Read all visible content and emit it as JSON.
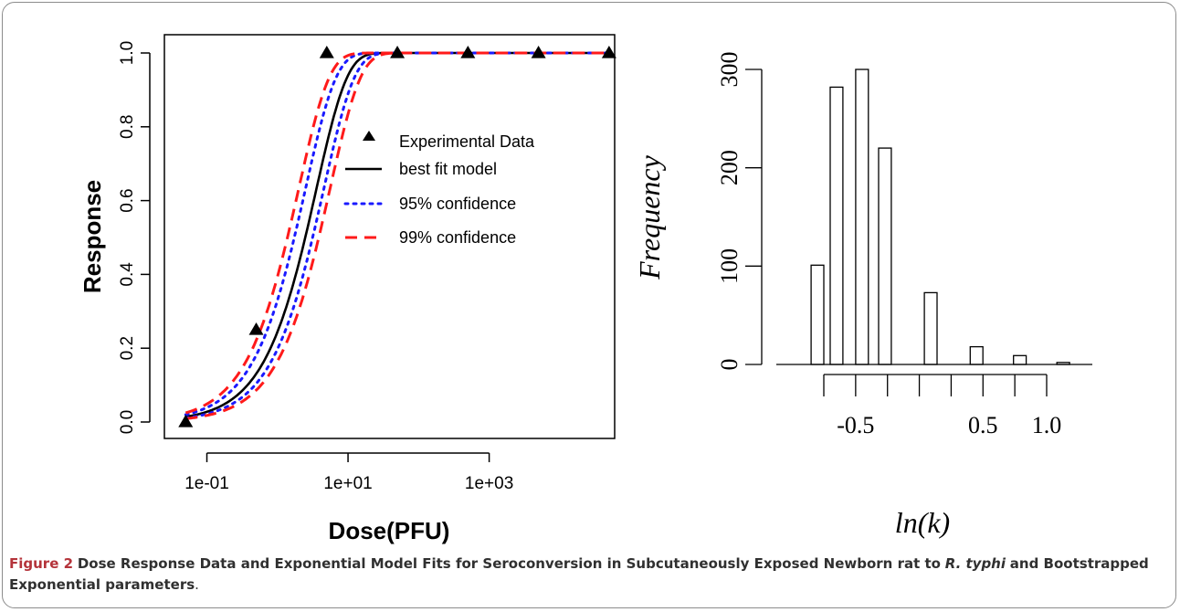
{
  "chart_data": [
    {
      "type": "line",
      "xlabel": "Dose(PFU)",
      "ylabel": "Response",
      "x_scale": "log10",
      "xlim": [
        0.025,
        60000
      ],
      "ylim": [
        0,
        1
      ],
      "x_ticks": [
        {
          "value": 0.1,
          "label": "1e-01"
        },
        {
          "value": 10,
          "label": "1e+01"
        },
        {
          "value": 1000,
          "label": "1e+03"
        }
      ],
      "y_ticks": [
        {
          "value": 0.0,
          "label": "0.0"
        },
        {
          "value": 0.2,
          "label": "0.2"
        },
        {
          "value": 0.4,
          "label": "0.4"
        },
        {
          "value": 0.6,
          "label": "0.6"
        },
        {
          "value": 0.8,
          "label": "0.8"
        },
        {
          "value": 1.0,
          "label": "1.0"
        }
      ],
      "points": {
        "name": "Experimental Data",
        "x": [
          0.05,
          0.5,
          5,
          50,
          500,
          5000,
          50000
        ],
        "y": [
          0.0,
          0.25,
          1.0,
          1.0,
          1.0,
          1.0,
          1.0
        ]
      },
      "curves": [
        {
          "name": "best fit model",
          "style": "solid",
          "color": "#000000",
          "k": [
            0.28
          ]
        },
        {
          "name": "95% confidence",
          "style": "dotted",
          "color": "#1a1aff",
          "k": [
            0.4,
            0.22
          ]
        },
        {
          "name": "99% confidence",
          "style": "dashed",
          "color": "#ff1a1a",
          "k": [
            0.5,
            0.18
          ]
        }
      ],
      "legend_position": "center-right",
      "grid": false
    },
    {
      "type": "histogram",
      "xlabel": "ln(k)",
      "ylabel": "Frequency",
      "xlim": [
        -0.95,
        1.5
      ],
      "ylim": [
        0,
        300
      ],
      "x_ticks": [
        {
          "value": -0.75,
          "label": ""
        },
        {
          "value": -0.5,
          "label": "-0.5"
        },
        {
          "value": -0.25,
          "label": ""
        },
        {
          "value": 0.0,
          "label": ""
        },
        {
          "value": 0.25,
          "label": ""
        },
        {
          "value": 0.5,
          "label": "0.5"
        },
        {
          "value": 0.75,
          "label": ""
        },
        {
          "value": 1.0,
          "label": "1.0"
        }
      ],
      "y_ticks": [
        {
          "value": 0,
          "label": "0"
        },
        {
          "value": 100,
          "label": "100"
        },
        {
          "value": 200,
          "label": "200"
        },
        {
          "value": 300,
          "label": "300"
        }
      ],
      "bins": [
        {
          "left": -0.85,
          "right": -0.75,
          "value": 101
        },
        {
          "left": -0.7,
          "right": -0.6,
          "value": 282
        },
        {
          "left": -0.5,
          "right": -0.4,
          "value": 300
        },
        {
          "left": -0.32,
          "right": -0.22,
          "value": 220
        },
        {
          "left": 0.04,
          "right": 0.14,
          "value": 73
        },
        {
          "left": 0.4,
          "right": 0.5,
          "value": 18
        },
        {
          "left": 0.74,
          "right": 0.84,
          "value": 9
        },
        {
          "left": 1.08,
          "right": 1.18,
          "value": 2
        }
      ],
      "grid": false
    }
  ],
  "caption": {
    "figure_number": "Figure 2",
    "title_part1": "Dose Response Data and Exponential Model Fits for Seroconversion in Subcutaneously Exposed Newborn rat to",
    "title_italic": "R. typhi",
    "title_part2": "and Bootstrapped Exponential parameters",
    "end": "."
  }
}
